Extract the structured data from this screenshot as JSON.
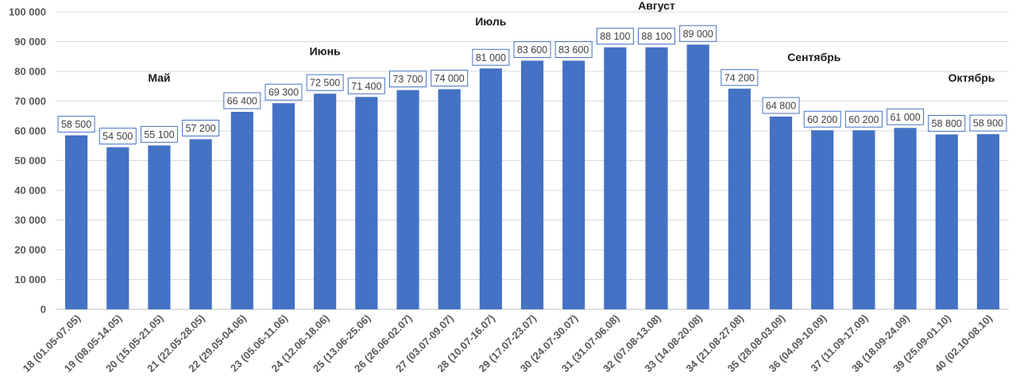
{
  "colors": {
    "bar": "#4472C4",
    "grid": "#d9d9d9",
    "label_border": "#4472C4",
    "text": "#595959"
  },
  "chart_data": {
    "type": "bar",
    "grid": true,
    "ylim": [
      0,
      100000
    ],
    "y_ticks": [
      0,
      10000,
      20000,
      30000,
      40000,
      50000,
      60000,
      70000,
      80000,
      90000,
      100000
    ],
    "y_tick_labels": [
      "0",
      "10 000",
      "20 000",
      "30 000",
      "40 000",
      "50 000",
      "60 000",
      "70 000",
      "80 000",
      "90 000",
      "100 000"
    ],
    "categories": [
      "18 (01.05-07.05)",
      "19 (08.05-14.05)",
      "20 (15.05-21.05)",
      "21 (22.05-28.05)",
      "22 (29.05-04.06)",
      "23 (05.06-11.06)",
      "24 (12.06-18.06)",
      "25 (13.06-25.06)",
      "26 (26.06-02.07)",
      "27 (03.07-09.07)",
      "28 (10.07-16.07)",
      "29 (17.07-23.07)",
      "30 (24.07-30.07)",
      "31 (31.07-06.08)",
      "32 (07.08-13.08)",
      "33 (14.08-20.08)",
      "34 (21.08-27.08)",
      "35 (28.08-03.09)",
      "36 (04.09-10.09)",
      "37 (11.09-17.09)",
      "38 (18.09-24.09)",
      "39 (25.09-01.10)",
      "40 (02.10-08.10)"
    ],
    "values": [
      58500,
      54500,
      55100,
      57200,
      66400,
      69300,
      72500,
      71400,
      73700,
      74000,
      81000,
      83600,
      83600,
      88100,
      88100,
      89000,
      74200,
      64800,
      60200,
      60200,
      61000,
      58800,
      58900
    ],
    "value_labels": [
      "58 500",
      "54 500",
      "55 100",
      "57 200",
      "66 400",
      "69 300",
      "72 500",
      "71 400",
      "73 700",
      "74 000",
      "81 000",
      "83 600",
      "83 600",
      "88 100",
      "88 100",
      "89 000",
      "74 200",
      "64 800",
      "60 200",
      "60 200",
      "61 000",
      "58 800",
      "58 900"
    ],
    "annotations": [
      {
        "text": "Май",
        "category_index": 2,
        "y": 76500
      },
      {
        "text": "Июнь",
        "category_index": 6,
        "y": 85500
      },
      {
        "text": "Июль",
        "category_index": 10,
        "y": 95500
      },
      {
        "text": "Август",
        "category_index": 14,
        "y": 102000
      },
      {
        "text": "Сентябрь",
        "category_index": 17.8,
        "y": 83500
      },
      {
        "text": "Октябрь",
        "category_index": 21.6,
        "y": 76500
      }
    ]
  }
}
